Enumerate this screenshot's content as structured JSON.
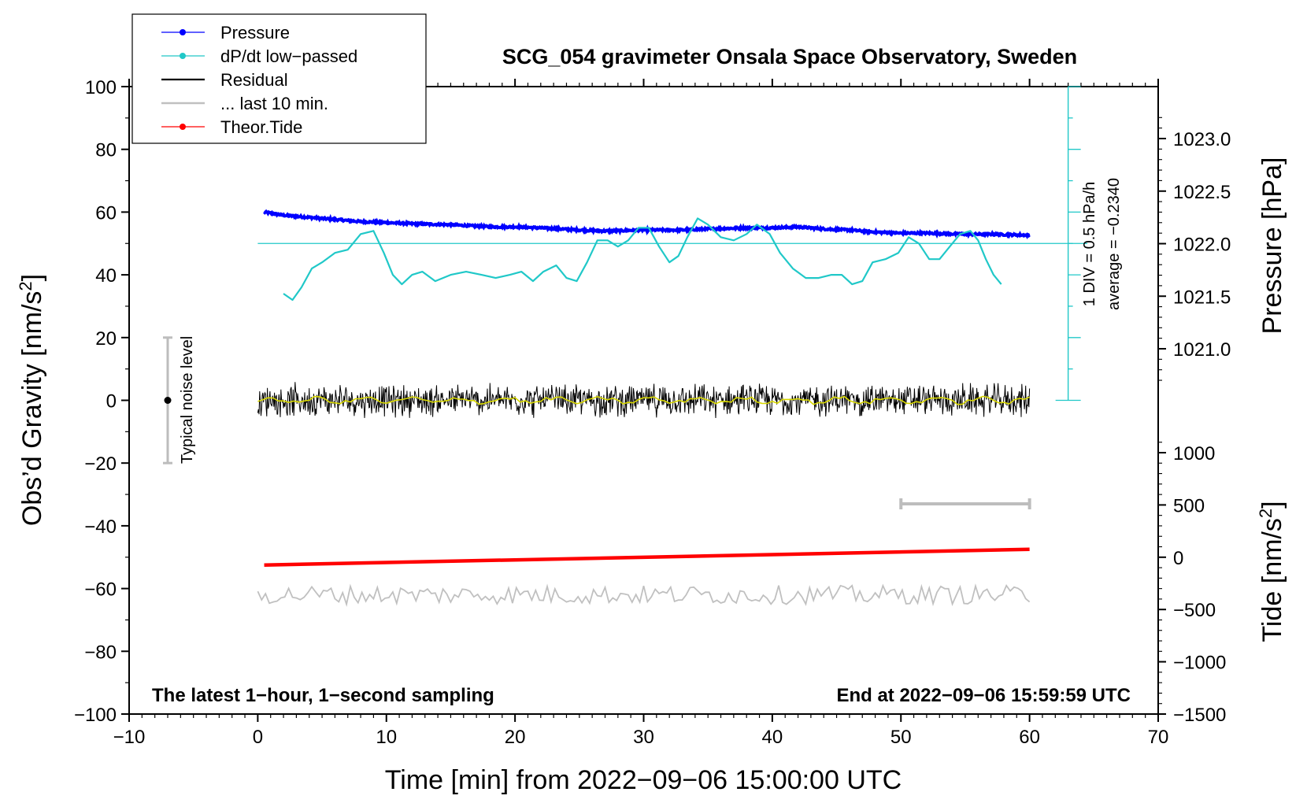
{
  "chart_data": {
    "type": "line",
    "title": "SCG_054 gravimeter Onsala Space Observatory, Sweden",
    "xlabel": "Time [min] from 2022−09−06 15:00:00 UTC",
    "ylabel_left": "Obs’d Gravity [nm/s",
    "ylabel_left_sup": "2",
    "ylabel_left_end": "]",
    "ylabel_right_pressure": "Pressure [hPa]",
    "ylabel_right_tide": "Tide [nm/s",
    "ylabel_right_tide_sup": "2",
    "ylabel_right_tide_end": "]",
    "xlim": [
      -10,
      70
    ],
    "ylim_left": [
      -100,
      100
    ],
    "x_ticks": [
      "−10",
      "0",
      "10",
      "20",
      "30",
      "40",
      "50",
      "60",
      "70"
    ],
    "y_ticks_left": [
      "100",
      "80",
      "60",
      "40",
      "20",
      "0",
      "−20",
      "−40",
      "−60",
      "−80",
      "−100"
    ],
    "pressure_ticks": [
      "1023.0",
      "1022.5",
      "1022.0",
      "1021.5",
      "1021.0"
    ],
    "tide_ticks": [
      "1000",
      "500",
      "0",
      "−500",
      "−1000",
      "−1500"
    ],
    "legend": [
      {
        "label": "Pressure",
        "color": "#0000ff",
        "marker": true
      },
      {
        "label": "dP/dt low−passed",
        "color": "#00c0c0",
        "marker": true
      },
      {
        "label": "Residual",
        "color": "#000000",
        "marker": false
      },
      {
        "label": "... last 10 min.",
        "color": "#c0c0c0",
        "marker": false
      },
      {
        "label": "Theor.Tide",
        "color": "#ff0000",
        "marker": true
      }
    ],
    "annotations": {
      "noise_label": "Typical noise level",
      "noise_range": [
        -20,
        20
      ],
      "noise_x": -7,
      "div_label": "1 DIV = 0.5 hPa/h",
      "average_label": "average = −0.2340",
      "bottom_left": "The latest 1−hour, 1−second sampling",
      "bottom_right": "End at 2022−09−06 15:59:59 UTC",
      "last10_bar_x": [
        50,
        60
      ],
      "last10_bar_y": -33
    },
    "series": [
      {
        "name": "Pressure",
        "units": "hPa",
        "color": "#0000ff",
        "x": [
          0.5,
          2,
          5,
          8,
          10,
          12,
          15,
          18,
          20,
          22,
          25,
          27,
          30,
          33,
          35,
          38,
          40,
          42,
          44,
          46,
          48,
          50,
          52,
          55,
          57,
          60
        ],
        "values": [
          1022.3,
          1022.27,
          1022.24,
          1022.21,
          1022.2,
          1022.19,
          1022.18,
          1022.16,
          1022.16,
          1022.15,
          1022.13,
          1022.12,
          1022.13,
          1022.13,
          1022.14,
          1022.15,
          1022.15,
          1022.16,
          1022.14,
          1022.13,
          1022.11,
          1022.1,
          1022.1,
          1022.09,
          1022.09,
          1022.08
        ]
      },
      {
        "name": "dP/dt low-passed",
        "units": "gravity-axis",
        "color": "#00c0c0",
        "x": [
          2,
          2.7,
          3.4,
          4.2,
          5,
          6,
          7,
          8,
          9,
          9.8,
          10.5,
          11.2,
          12,
          12.8,
          13.8,
          15,
          16.2,
          17.4,
          18.5,
          19.6,
          20.5,
          21.4,
          22.2,
          23.2,
          24,
          24.8,
          25.6,
          26.4,
          27.2,
          28,
          28.8,
          29.6,
          30.4,
          31.2,
          32,
          32.7,
          33.4,
          34.2,
          35,
          36,
          37,
          38,
          38.8,
          39.8,
          40.6,
          41.6,
          42.6,
          43.6,
          44.6,
          45.4,
          46.2,
          47,
          47.8,
          48.8,
          49.8,
          50.6,
          51.4,
          52.2,
          53,
          53.8,
          54.6,
          55.4,
          56,
          56.6,
          57.2,
          57.8
        ],
        "values": [
          34,
          32,
          36,
          42,
          44,
          47,
          48,
          53,
          54,
          47,
          40,
          37,
          40,
          41,
          38,
          40,
          41,
          40,
          39,
          40,
          41,
          38,
          41,
          43,
          39,
          38,
          44,
          51,
          51,
          49,
          51,
          55,
          55,
          49,
          44,
          46,
          52,
          58,
          56,
          52,
          51,
          53,
          56,
          53,
          47,
          42,
          39,
          39,
          40,
          40,
          37,
          38,
          44,
          45,
          47,
          52,
          50,
          45,
          45,
          49,
          53,
          54,
          51,
          45,
          40,
          37
        ]
      },
      {
        "name": "Residual",
        "units": "nm/s^2",
        "color": "#000000",
        "x": [
          0,
          60
        ],
        "values": [
          0,
          0
        ],
        "noise_amplitude": 4
      },
      {
        "name": "... last 10 min.",
        "units": "nm/s^2",
        "color": "#c0c0c0",
        "x": [
          0,
          60
        ],
        "values": [
          -62,
          -62
        ],
        "noise_amplitude": 3
      },
      {
        "name": "Theor.Tide",
        "units": "nm/s^2",
        "color": "#ff0000",
        "x": [
          0.5,
          60
        ],
        "values": [
          -52.5,
          -47.5
        ]
      }
    ]
  }
}
